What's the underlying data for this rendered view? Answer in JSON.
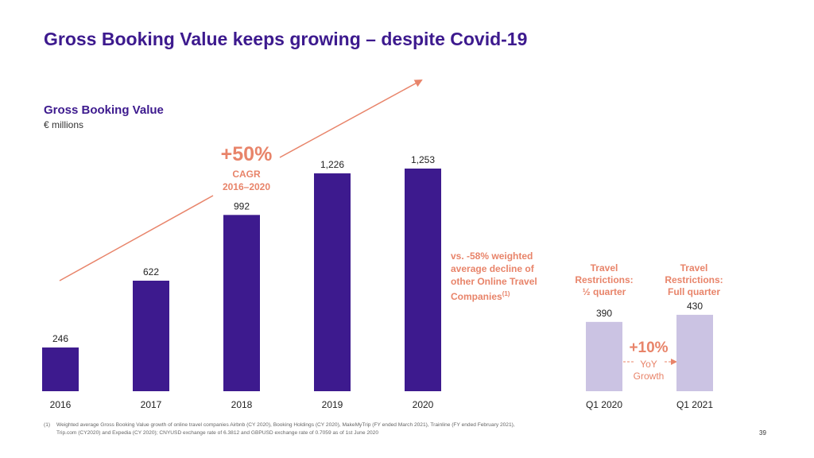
{
  "title": "Gross Booking Value keeps growing – despite Covid-19",
  "chart_data": [
    {
      "type": "bar",
      "title": "Gross Booking Value",
      "ylabel": "€ millions",
      "categories": [
        "2016",
        "2017",
        "2018",
        "2019",
        "2020"
      ],
      "values": [
        246,
        622,
        992,
        1226,
        1253
      ],
      "value_labels": [
        "246",
        "622",
        "992",
        "1,226",
        "1,253"
      ],
      "ylim": [
        0,
        1400
      ],
      "color": "#3d1a8e",
      "annotations": {
        "cagr_value": "+50%",
        "cagr_label": "CAGR",
        "cagr_period": "2016–2020",
        "comparison_text": "vs. -58% weighted average decline of other Online Travel Companies",
        "comparison_footnote_ref": "(1)"
      }
    },
    {
      "type": "bar",
      "categories": [
        "Q1 2020",
        "Q1 2021"
      ],
      "values": [
        390,
        430
      ],
      "value_labels": [
        "390",
        "430"
      ],
      "ylim": [
        0,
        1400
      ],
      "color": "#cbc3e3",
      "column_headers": [
        [
          "Travel",
          "Restrictions:",
          "½ quarter"
        ],
        [
          "Travel",
          "Restrictions:",
          "Full quarter"
        ]
      ],
      "annotations": {
        "growth_value": "+10%",
        "growth_label_1": "YoY",
        "growth_label_2": "Growth"
      }
    }
  ],
  "footnote": {
    "number": "(1)",
    "line1": "Weighted average Gross Booking Value growth of online travel companies Airbnb (CY 2020), Booking Holdings (CY 2020), MakeMyTrip (FY ended March 2021), Trainline (FY ended February 2021),",
    "line2": "Trip.com (CY2020) and Expedia (CY 2020); CNYUSD exchange rate of 6.3812 and GBPUSD exchange rate of 0.7059 as of 1st June 2020"
  },
  "page_number": "39",
  "colors": {
    "primary": "#3d1a8e",
    "accent": "#e8846a",
    "light_bar": "#cbc3e3"
  }
}
